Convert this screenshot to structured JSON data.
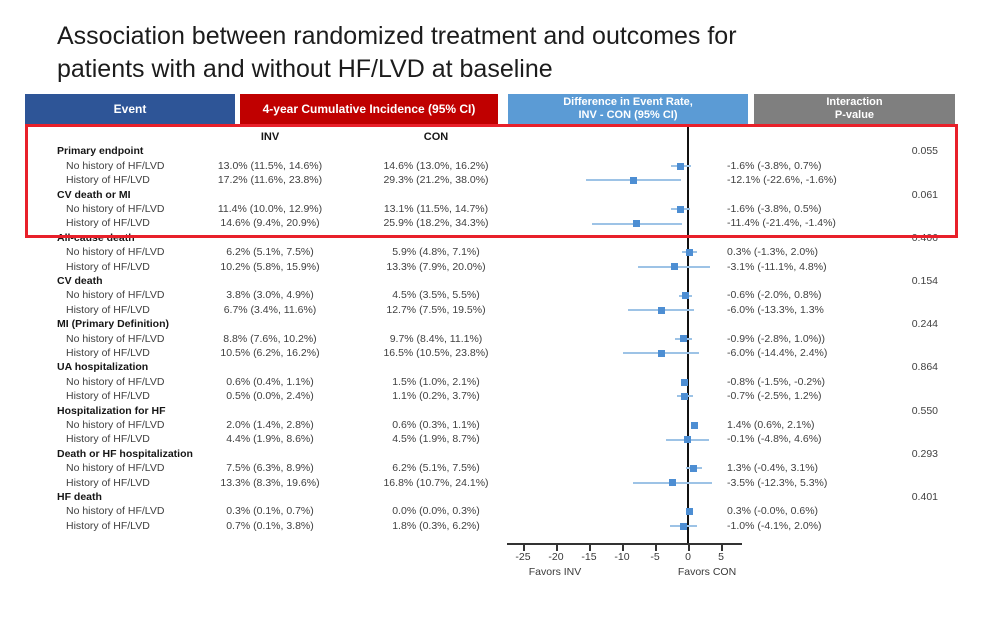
{
  "title": {
    "line1": "Association between randomized treatment and outcomes for",
    "line2": "patients with and without HF/LVD at baseline"
  },
  "header": {
    "event": "Event",
    "incidence": "4-year Cumulative Incidence (95% CI)",
    "difference_line1": "Difference in Event Rate,",
    "difference_line2": "INV - CON (95% CI)",
    "interaction_line1": "Interaction",
    "interaction_line2": "P-value"
  },
  "colors": {
    "event_bg": "#2E5597",
    "incidence_bg": "#C00000",
    "difference_bg": "#5B9BD5",
    "interaction_bg": "#7F7F7F",
    "highlight_border": "#E8202A",
    "marker": "#4D8ED3",
    "ci_line": "#9DC3E6"
  },
  "subheaders": {
    "inv": "INV",
    "con": "CON"
  },
  "axis_labels": {
    "favors_left": "Favors INV",
    "favors_right": "Favors CON"
  },
  "chart_data": {
    "type": "scatter",
    "subtype": "forest-plot",
    "title": "Association between randomized treatment and outcomes for patients with and without HF/LVD at baseline",
    "x_ticks": [
      -25,
      -20,
      -15,
      -10,
      -5,
      0,
      5
    ],
    "xlim": [
      -27,
      7
    ],
    "zero_reference": 0,
    "legend_position": "none",
    "grid": false,
    "highlighted_groups": [
      "Primary endpoint",
      "CV death or MI"
    ],
    "groups": [
      {
        "label": "Primary endpoint",
        "pvalue": "0.055",
        "items": [
          {
            "label": "No history of HF/LVD",
            "inv": "13.0% (11.5%, 14.6%)",
            "con": "14.6% (13.0%, 16.2%)",
            "diff": "-1.6% (-3.8%, 0.7%)",
            "est": -1.6,
            "lo": -3.8,
            "hi": 0.7
          },
          {
            "label": "History of HF/LVD",
            "inv": "17.2% (11.6%, 23.8%)",
            "con": "29.3% (21.2%, 38.0%)",
            "diff": "-12.1% (-22.6%, -1.6%)",
            "est": -12.1,
            "lo": -22.6,
            "hi": -1.6
          }
        ]
      },
      {
        "label": "CV death or MI",
        "pvalue": "0.061",
        "items": [
          {
            "label": "No history of HF/LVD",
            "inv": "11.4% (10.0%, 12.9%)",
            "con": "13.1% (11.5%, 14.7%)",
            "diff": "-1.6% (-3.8%, 0.5%)",
            "est": -1.6,
            "lo": -3.8,
            "hi": 0.5
          },
          {
            "label": "History of HF/LVD",
            "inv": "14.6% (9.4%, 20.9%)",
            "con": "25.9% (18.2%, 34.3%)",
            "diff": "-11.4% (-21.4%, -1.4%)",
            "est": -11.4,
            "lo": -21.4,
            "hi": -1.4
          }
        ]
      },
      {
        "label": "All-cause death",
        "pvalue": "0.406",
        "items": [
          {
            "label": "No history of HF/LVD",
            "inv": "6.2% (5.1%, 7.5%)",
            "con": "5.9% (4.8%, 7.1%)",
            "diff": "0.3% (-1.3%, 2.0%)",
            "est": 0.3,
            "lo": -1.3,
            "hi": 2.0
          },
          {
            "label": "History of HF/LVD",
            "inv": "10.2% (5.8%, 15.9%)",
            "con": "13.3% (7.9%, 20.0%)",
            "diff": "-3.1% (-11.1%, 4.8%)",
            "est": -3.1,
            "lo": -11.1,
            "hi": 4.8
          }
        ]
      },
      {
        "label": "CV death",
        "pvalue": "0.154",
        "items": [
          {
            "label": "No history of HF/LVD",
            "inv": "3.8% (3.0%, 4.9%)",
            "con": "4.5% (3.5%, 5.5%)",
            "diff": "-0.6% (-2.0%, 0.8%)",
            "est": -0.6,
            "lo": -2.0,
            "hi": 0.8
          },
          {
            "label": "History of HF/LVD",
            "inv": "6.7% (3.4%, 11.6%)",
            "con": "12.7% (7.5%, 19.5%)",
            "diff": "-6.0% (-13.3%, 1.3%",
            "est": -6.0,
            "lo": -13.3,
            "hi": 1.3
          }
        ]
      },
      {
        "label": "MI (Primary Definition)",
        "pvalue": "0.244",
        "items": [
          {
            "label": "No history of HF/LVD",
            "inv": "8.8% (7.6%, 10.2%)",
            "con": "9.7% (8.4%, 11.1%)",
            "diff": "-0.9% (-2.8%, 1.0%))",
            "est": -0.9,
            "lo": -2.8,
            "hi": 1.0
          },
          {
            "label": "History of HF/LVD",
            "inv": "10.5% (6.2%, 16.2%)",
            "con": "16.5% (10.5%, 23.8%)",
            "diff": "-6.0% (-14.4%, 2.4%)",
            "est": -6.0,
            "lo": -14.4,
            "hi": 2.4
          }
        ]
      },
      {
        "label": "UA hospitalization",
        "pvalue": "0.864",
        "items": [
          {
            "label": "No history of HF/LVD",
            "inv": "0.6% (0.4%, 1.1%)",
            "con": "1.5% (1.0%, 2.1%)",
            "diff": "-0.8% (-1.5%, -0.2%)",
            "est": -0.8,
            "lo": -1.5,
            "hi": -0.2
          },
          {
            "label": "History of HF/LVD",
            "inv": "0.5% (0.0%, 2.4%)",
            "con": "1.1% (0.2%, 3.7%)",
            "diff": "-0.7% (-2.5%, 1.2%)",
            "est": -0.7,
            "lo": -2.5,
            "hi": 1.2
          }
        ]
      },
      {
        "label": "Hospitalization for HF",
        "pvalue": "0.550",
        "items": [
          {
            "label": "No history of HF/LVD",
            "inv": "2.0% (1.4%, 2.8%)",
            "con": "0.6% (0.3%, 1.1%)",
            "diff": "1.4% (0.6%, 2.1%)",
            "est": 1.4,
            "lo": 0.6,
            "hi": 2.1
          },
          {
            "label": "History of HF/LVD",
            "inv": "4.4% (1.9%, 8.6%)",
            "con": "4.5% (1.9%, 8.7%)",
            "diff": "-0.1% (-4.8%, 4.6%)",
            "est": -0.1,
            "lo": -4.8,
            "hi": 4.6
          }
        ]
      },
      {
        "label": "Death or HF hospitalization",
        "pvalue": "0.293",
        "items": [
          {
            "label": "No history of HF/LVD",
            "inv": "7.5% (6.3%, 8.9%)",
            "con": "6.2% (5.1%, 7.5%)",
            "diff": "1.3% (-0.4%, 3.1%)",
            "est": 1.3,
            "lo": -0.4,
            "hi": 3.1
          },
          {
            "label": "History of HF/LVD",
            "inv": "13.3% (8.3%, 19.6%)",
            "con": "16.8% (10.7%, 24.1%)",
            "diff": "-3.5% (-12.3%, 5.3%)",
            "est": -3.5,
            "lo": -12.3,
            "hi": 5.3
          }
        ]
      },
      {
        "label": "HF death",
        "pvalue": "0.401",
        "items": [
          {
            "label": "No history of HF/LVD",
            "inv": "0.3% (0.1%, 0.7%)",
            "con": "0.0% (0.0%, 0.3%)",
            "diff": "0.3% (-0.0%, 0.6%)",
            "est": 0.3,
            "lo": 0.0,
            "hi": 0.6
          },
          {
            "label": "History of HF/LVD",
            "inv": "0.7% (0.1%, 3.8%)",
            "con": "1.8% (0.3%, 6.2%)",
            "diff": "-1.0% (-4.1%, 2.0%)",
            "est": -1.0,
            "lo": -4.1,
            "hi": 2.0
          }
        ]
      }
    ]
  }
}
